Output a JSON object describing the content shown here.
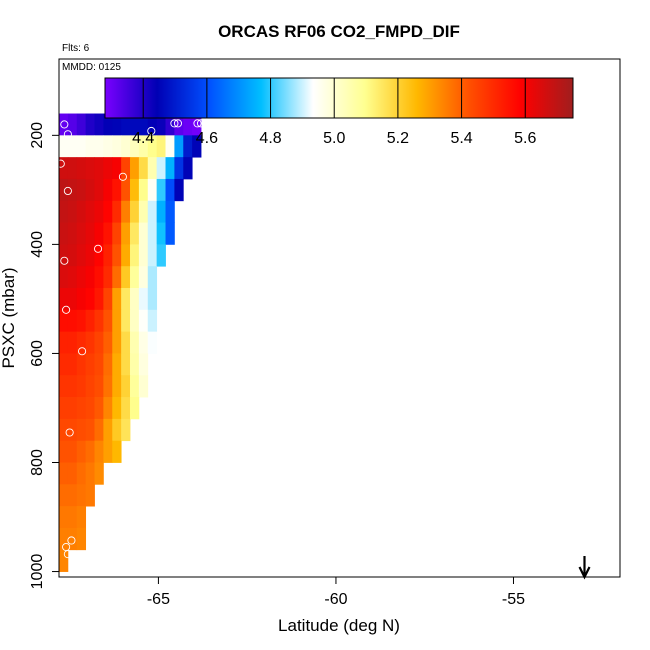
{
  "chart_data": {
    "type": "heatmap",
    "title": "ORCAS RF06 CO2_FMPD_DIF",
    "annotations": {
      "flights": "Flts: 6",
      "date": "MMDD: 0125"
    },
    "xlabel": "Latitude (deg N)",
    "ylabel": "PSXC (mbar)",
    "xlim": [
      -67.8,
      -52.0
    ],
    "ylim": [
      1010,
      60
    ],
    "y_reversed": true,
    "x_ticks": [
      -65,
      -60,
      -55
    ],
    "x_tick_labels": [
      "-65",
      "-60",
      "-55"
    ],
    "y_ticks": [
      200,
      400,
      600,
      800,
      1000
    ],
    "y_tick_labels": [
      "200",
      "400",
      "600",
      "800",
      "1000"
    ],
    "colorbar": {
      "range": [
        4.28,
        5.75
      ],
      "ticks": [
        4.4,
        4.6,
        4.8,
        5.0,
        5.2,
        5.4,
        5.6
      ],
      "tick_labels": [
        "4.4",
        "4.6",
        "4.8",
        "5.0",
        "5.2",
        "5.4",
        "5.6"
      ],
      "colors": [
        "#7a00ff",
        "#0000b4",
        "#0050ff",
        "#00beff",
        "#ffffff",
        "#ffff90",
        "#ffb800",
        "#ff5000",
        "#ff0000",
        "#a01e1e"
      ]
    },
    "cell_width_deg": 0.25,
    "row_height_mbar": 40,
    "rows": [
      {
        "p": 180,
        "lat0": -67.8,
        "values": [
          4.31,
          4.33,
          4.36,
          4.4,
          4.42,
          4.44,
          4.45,
          4.46,
          4.46,
          4.46,
          4.44,
          4.43,
          4.38,
          4.32,
          4.3,
          4.29
        ]
      },
      {
        "p": 220,
        "lat0": -67.8,
        "values": [
          4.95,
          4.95,
          4.95,
          4.96,
          4.96,
          4.97,
          4.98,
          5.0,
          5.03,
          5.06,
          5.1,
          5.12,
          4.95,
          4.72,
          4.5,
          4.45
        ]
      },
      {
        "p": 260,
        "lat0": -67.8,
        "values": [
          5.67,
          5.67,
          5.66,
          5.65,
          5.64,
          5.62,
          5.6,
          5.45,
          5.3,
          5.18,
          5.05,
          4.9,
          4.75,
          4.55,
          4.45
        ]
      },
      {
        "p": 300,
        "lat0": -67.8,
        "values": [
          5.7,
          5.69,
          5.68,
          5.66,
          5.64,
          5.6,
          5.55,
          5.42,
          5.25,
          5.1,
          4.95,
          4.8,
          4.6,
          4.45
        ]
      },
      {
        "p": 340,
        "lat0": -67.8,
        "values": [
          5.69,
          5.68,
          5.66,
          5.64,
          5.62,
          5.58,
          5.5,
          5.35,
          5.2,
          5.05,
          4.9,
          4.75,
          4.62
        ]
      },
      {
        "p": 380,
        "lat0": -67.8,
        "values": [
          5.68,
          5.67,
          5.65,
          5.63,
          5.6,
          5.55,
          5.45,
          5.3,
          5.15,
          5.0,
          4.9,
          4.78,
          4.62
        ]
      },
      {
        "p": 420,
        "lat0": -67.8,
        "values": [
          5.67,
          5.66,
          5.64,
          5.62,
          5.58,
          5.52,
          5.42,
          5.28,
          5.12,
          5.0,
          4.9,
          4.8
        ]
      },
      {
        "p": 460,
        "lat0": -67.8,
        "values": [
          5.65,
          5.64,
          5.62,
          5.6,
          5.56,
          5.5,
          5.38,
          5.22,
          5.08,
          4.98,
          4.88
        ]
      },
      {
        "p": 500,
        "lat0": -67.8,
        "values": [
          5.62,
          5.62,
          5.6,
          5.58,
          5.54,
          5.45,
          5.3,
          5.15,
          5.02,
          4.92,
          4.88
        ]
      },
      {
        "p": 540,
        "lat0": -67.8,
        "values": [
          5.56,
          5.56,
          5.55,
          5.52,
          5.48,
          5.42,
          5.3,
          5.15,
          5.02,
          4.94,
          4.9
        ]
      },
      {
        "p": 580,
        "lat0": -67.8,
        "values": [
          5.52,
          5.52,
          5.5,
          5.48,
          5.45,
          5.4,
          5.3,
          5.18,
          5.05,
          4.97,
          4.93
        ]
      },
      {
        "p": 620,
        "lat0": -67.8,
        "values": [
          5.5,
          5.5,
          5.48,
          5.46,
          5.44,
          5.38,
          5.28,
          5.18,
          5.06,
          4.98
        ]
      },
      {
        "p": 660,
        "lat0": -67.8,
        "values": [
          5.48,
          5.48,
          5.47,
          5.45,
          5.43,
          5.37,
          5.28,
          5.2,
          5.08,
          5.0
        ]
      },
      {
        "p": 700,
        "lat0": -67.8,
        "values": [
          5.46,
          5.46,
          5.45,
          5.44,
          5.41,
          5.34,
          5.26,
          5.18,
          5.1
        ]
      },
      {
        "p": 740,
        "lat0": -67.8,
        "values": [
          5.44,
          5.44,
          5.43,
          5.42,
          5.38,
          5.3,
          5.22,
          5.16
        ]
      },
      {
        "p": 780,
        "lat0": -67.8,
        "values": [
          5.42,
          5.42,
          5.4,
          5.38,
          5.34,
          5.3,
          5.26
        ]
      },
      {
        "p": 820,
        "lat0": -67.8,
        "values": [
          5.4,
          5.4,
          5.38,
          5.36,
          5.33
        ]
      },
      {
        "p": 860,
        "lat0": -67.8,
        "values": [
          5.38,
          5.38,
          5.37,
          5.36
        ]
      },
      {
        "p": 900,
        "lat0": -67.8,
        "values": [
          5.36,
          5.36,
          5.35
        ]
      },
      {
        "p": 940,
        "lat0": -67.8,
        "values": [
          5.35,
          5.35,
          5.34
        ]
      },
      {
        "p": 980,
        "lat0": -67.8,
        "values": [
          5.34
        ]
      }
    ],
    "flight_points": [
      {
        "lat": -67.65,
        "p": 180
      },
      {
        "lat": -67.55,
        "p": 198
      },
      {
        "lat": -65.2,
        "p": 192
      },
      {
        "lat": -64.55,
        "p": 178
      },
      {
        "lat": -64.45,
        "p": 178
      },
      {
        "lat": -63.9,
        "p": 178
      },
      {
        "lat": -63.8,
        "p": 178
      },
      {
        "lat": -67.75,
        "p": 252
      },
      {
        "lat": -67.55,
        "p": 302
      },
      {
        "lat": -66.0,
        "p": 276
      },
      {
        "lat": -66.7,
        "p": 408
      },
      {
        "lat": -67.65,
        "p": 430
      },
      {
        "lat": -67.6,
        "p": 520
      },
      {
        "lat": -67.15,
        "p": 596
      },
      {
        "lat": -67.5,
        "p": 745
      },
      {
        "lat": -67.45,
        "p": 943
      },
      {
        "lat": -67.6,
        "p": 955
      },
      {
        "lat": -67.55,
        "p": 968
      }
    ],
    "arrow": {
      "lat": -53.0,
      "direction": "down"
    }
  }
}
